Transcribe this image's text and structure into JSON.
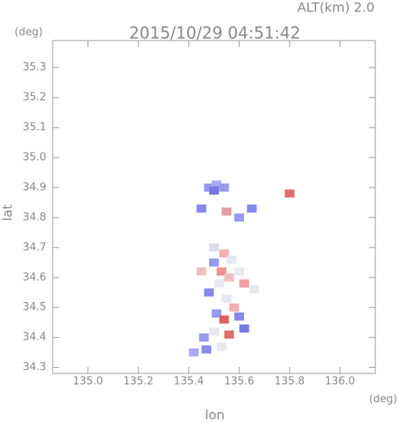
{
  "chart_data": {
    "type": "scatter",
    "title": "2015/10/29 04:51:42",
    "subtitle": "ALT(km) 2.0",
    "y_unit": "(deg)",
    "x_unit": "(deg)",
    "xlabel": "lon",
    "ylabel": "lat",
    "xlim": [
      134.86,
      136.14
    ],
    "ylim": [
      34.28,
      35.39
    ],
    "xticks": [
      {
        "value": 135,
        "label": "135.0"
      },
      135.2,
      135.4,
      135.6,
      135.8,
      {
        "value": 136,
        "label": "136.0"
      }
    ],
    "yticks": [
      34.3,
      34.4,
      34.5,
      34.6,
      34.7,
      34.8,
      34.9,
      {
        "value": 35,
        "label": "35.0"
      },
      35.1,
      35.2,
      35.3
    ],
    "x": [
      135.48,
      135.51,
      135.54,
      135.5,
      135.45,
      135.55,
      135.6,
      135.65,
      135.8,
      135.5,
      135.54,
      135.57,
      135.5,
      135.53,
      135.56,
      135.6,
      135.62,
      135.52,
      135.48,
      135.55,
      135.58,
      135.51,
      135.54,
      135.6,
      135.62,
      135.56,
      135.5,
      135.46,
      135.53,
      135.47,
      135.42,
      135.66,
      135.45
    ],
    "y": [
      34.9,
      34.91,
      34.9,
      34.89,
      34.83,
      34.82,
      34.8,
      34.83,
      34.88,
      34.7,
      34.68,
      34.66,
      34.65,
      34.62,
      34.6,
      34.62,
      34.58,
      34.58,
      34.55,
      34.53,
      34.5,
      34.48,
      34.46,
      34.47,
      34.43,
      34.41,
      34.42,
      34.4,
      34.37,
      34.36,
      34.35,
      34.56,
      34.62
    ],
    "colors": [
      "#9999ee",
      "#aaaaf0",
      "#9999ee",
      "#7777e0",
      "#8888e8",
      "#e0a0a0",
      "#9999ee",
      "#8888e8",
      "#e07070",
      "#dddde8",
      "#f0b0b0",
      "#e8e8f0",
      "#9999ee",
      "#f09090",
      "#f0c0c0",
      "#e8e8f0",
      "#f0a0a0",
      "#e8e8f0",
      "#8888e8",
      "#e8e8f0",
      "#f0b0b0",
      "#9999ee",
      "#e06060",
      "#8888e8",
      "#7777e0",
      "#e07070",
      "#e8e8f0",
      "#9999ee",
      "#e8e8f0",
      "#8888e8",
      "#aaaaf0",
      "#e8e8f0",
      "#f0c0c0"
    ]
  }
}
